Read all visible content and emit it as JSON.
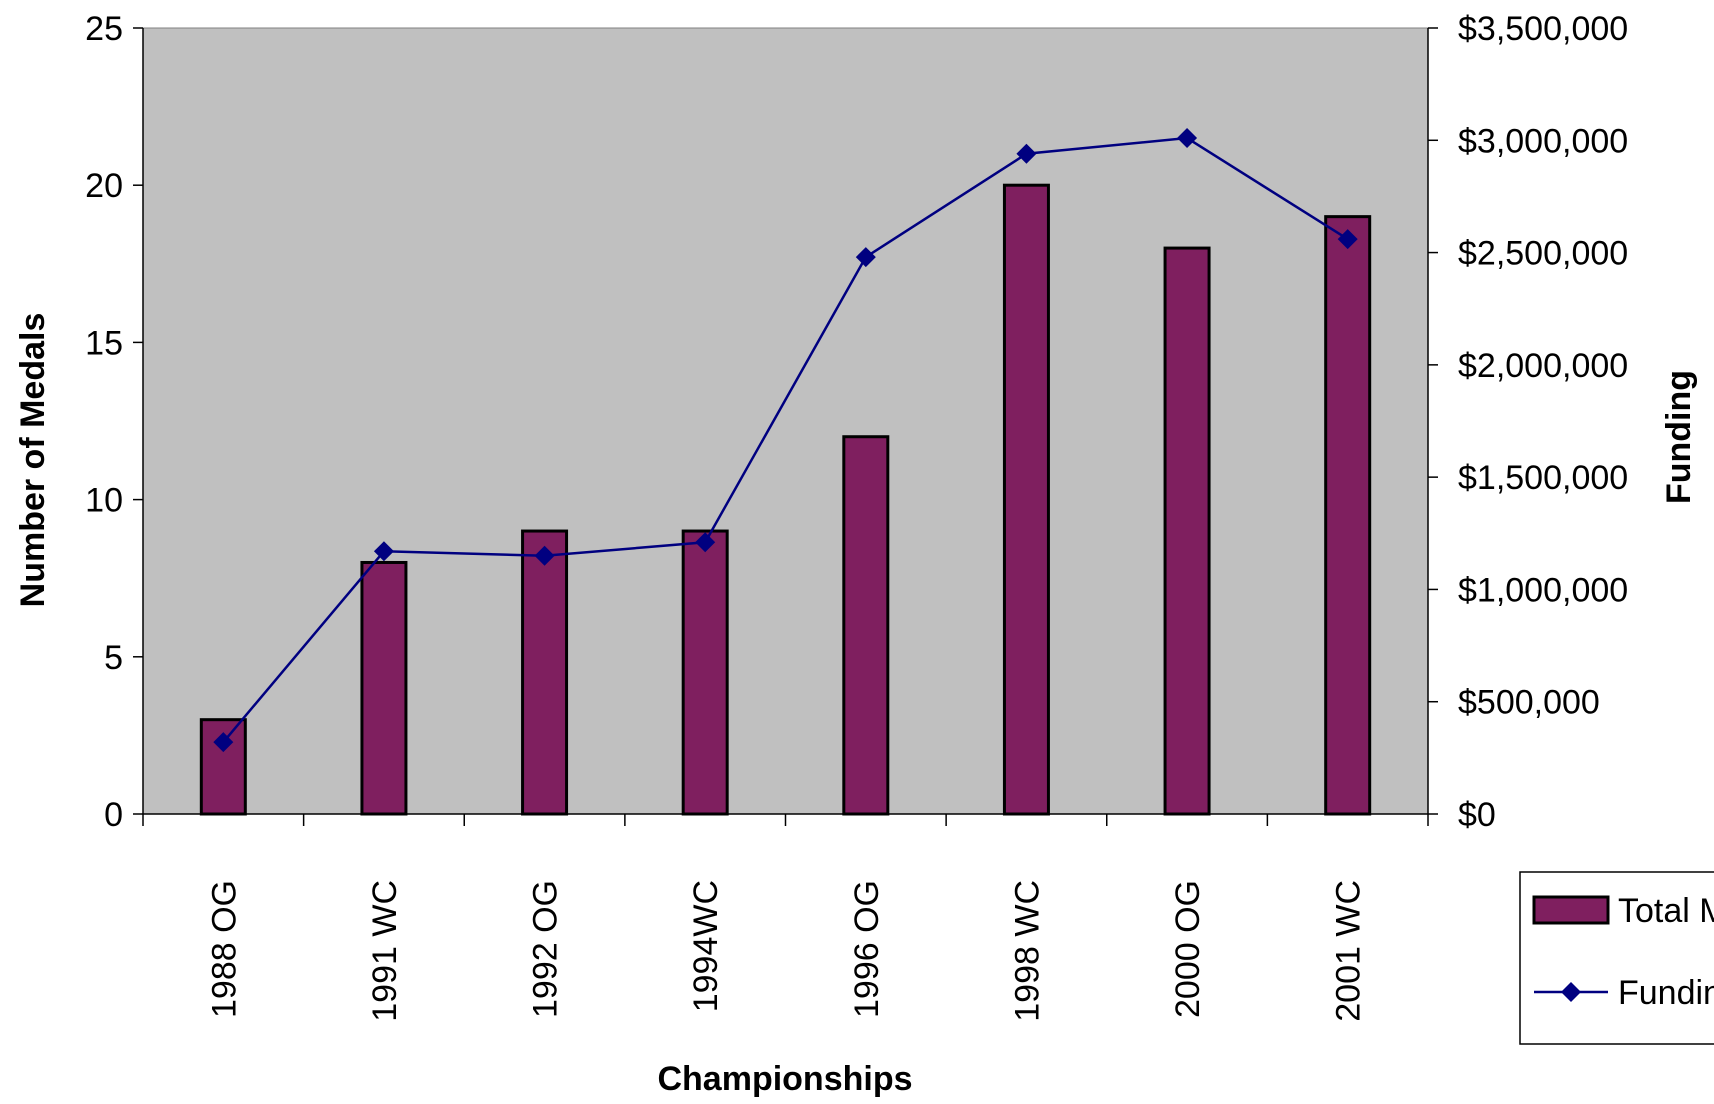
{
  "chart_data": {
    "type": "bar",
    "xlabel": "Championships",
    "ylabel": "Number of Medals",
    "y2label": "Funding",
    "categories": [
      "1988 OG",
      "1991 WC",
      "1992 OG",
      "1994WC",
      "1996 OG",
      "1998 WC",
      "2000 OG",
      "2001 WC"
    ],
    "ylim": [
      0,
      25
    ],
    "yticks": [
      "0",
      "5",
      "10",
      "15",
      "20",
      "25"
    ],
    "y2lim": [
      0,
      3500000
    ],
    "y2ticks": [
      "$0",
      "$500,000",
      "$1,000,000",
      "$1,500,000",
      "$2,000,000",
      "$2,500,000",
      "$3,000,000",
      "$3,500,000"
    ],
    "series": [
      {
        "name": "Total M",
        "kind": "bar",
        "axis": "left",
        "values": [
          3,
          8,
          9,
          9,
          12,
          20,
          18,
          19
        ],
        "color": "#7f1f5f"
      },
      {
        "name": "Fundin",
        "kind": "line",
        "axis": "right",
        "values": [
          320000,
          1170000,
          1150000,
          1210000,
          2480000,
          2940000,
          3010000,
          2560000
        ],
        "color": "#000080"
      }
    ],
    "grid": false,
    "legend": "bottom-right",
    "plot_background": "#c0c0c0"
  }
}
